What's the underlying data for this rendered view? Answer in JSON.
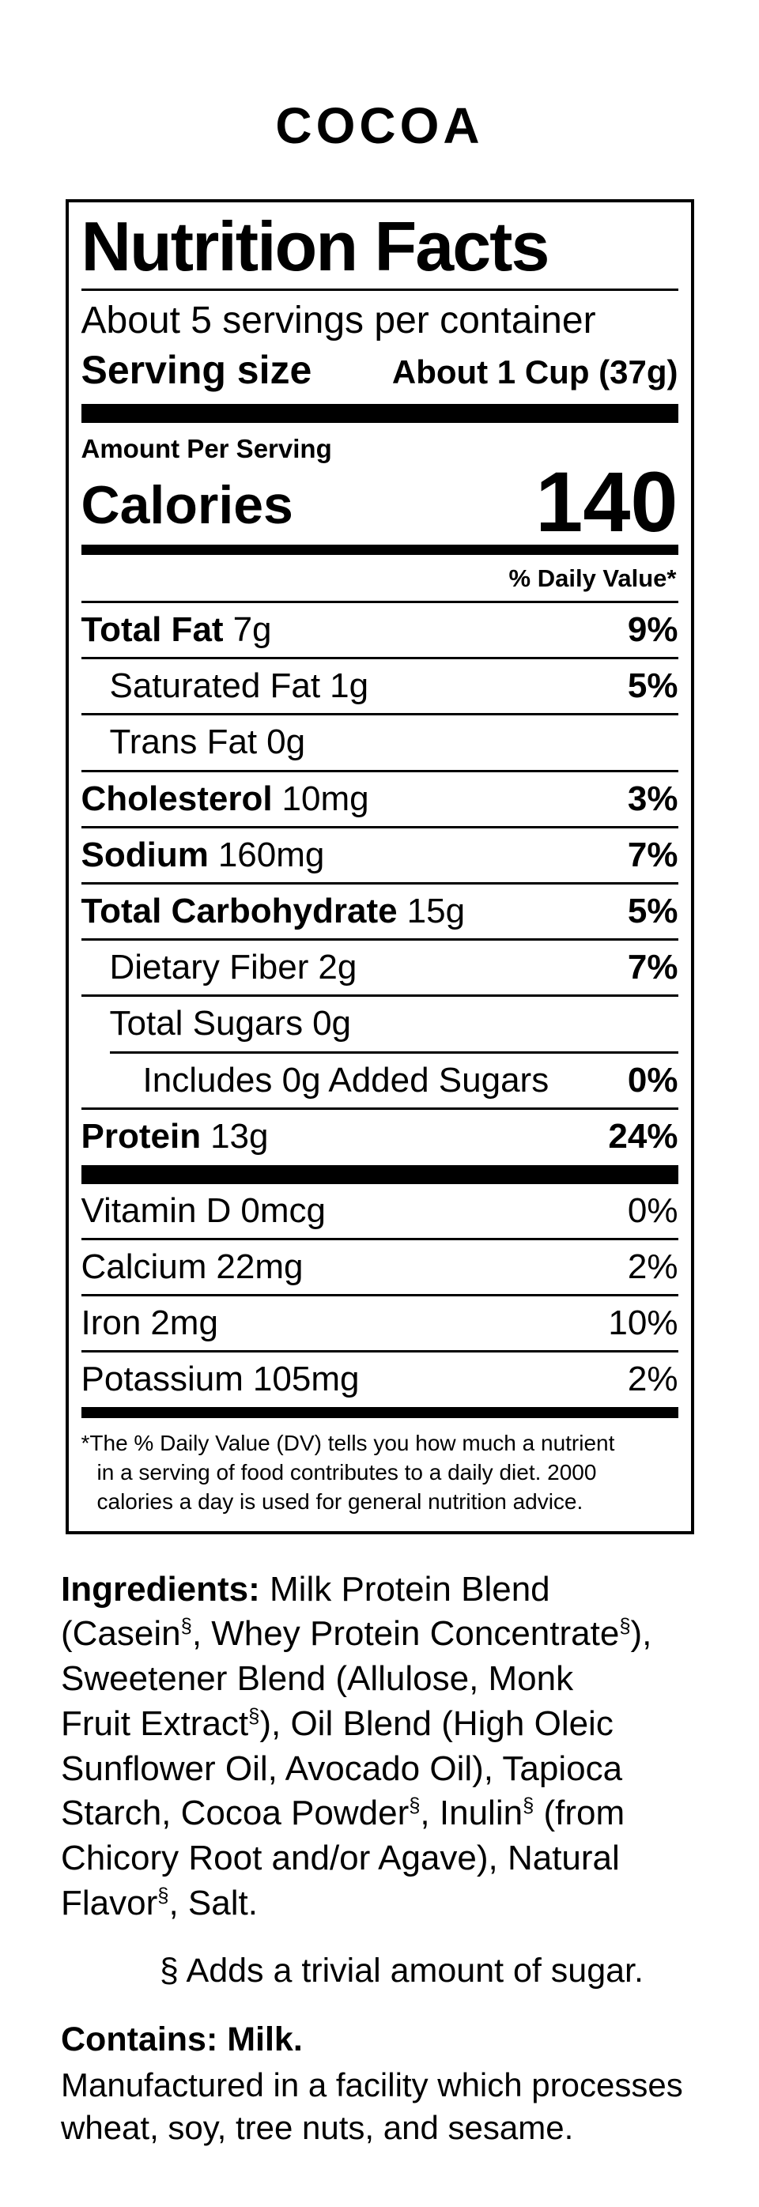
{
  "palette": {
    "text": "#000000",
    "background": "#ffffff"
  },
  "product_title": "COCOA",
  "nutrition_facts": {
    "title": "Nutrition Facts",
    "servings_per_container": "About 5 servings per container",
    "serving_size_label": "Serving size",
    "serving_size_value": "About 1 Cup (37g)",
    "amount_per_serving": "Amount Per Serving",
    "calories_label": "Calories",
    "calories_value": "140",
    "daily_value_header": "% Daily Value*",
    "rows": [
      {
        "name": "Total Fat",
        "amount": "7g",
        "dv": "9%"
      },
      {
        "name": "Saturated Fat",
        "amount": "1g",
        "dv": "5%"
      },
      {
        "name": "Trans Fat",
        "amount": "0g",
        "dv": ""
      },
      {
        "name": "Cholesterol",
        "amount": "10mg",
        "dv": "3%"
      },
      {
        "name": "Sodium",
        "amount": "160mg",
        "dv": "7%"
      },
      {
        "name": "Total Carbohydrate",
        "amount": "15g",
        "dv": "5%"
      },
      {
        "name": "Dietary Fiber",
        "amount": "2g",
        "dv": "7%"
      },
      {
        "name": "Total Sugars",
        "amount": "0g",
        "dv": ""
      },
      {
        "name": "Includes 0g Added Sugars",
        "amount": "",
        "dv": "0%"
      },
      {
        "name": "Protein",
        "amount": "13g",
        "dv": "24%"
      }
    ],
    "micronutrients": [
      {
        "name": "Vitamin D",
        "amount": "0mcg",
        "dv": "0%"
      },
      {
        "name": "Calcium",
        "amount": "22mg",
        "dv": "2%"
      },
      {
        "name": "Iron",
        "amount": "2mg",
        "dv": "10%"
      },
      {
        "name": "Potassium",
        "amount": "105mg",
        "dv": "2%"
      }
    ],
    "footnote_lines": [
      "*The % Daily Value (DV) tells you how much a nutrient",
      "in a serving of food contributes to a daily diet. 2000",
      "calories a day is used for general nutrition advice."
    ]
  },
  "ingredients": {
    "label": "Ingredients:",
    "full_text": "Ingredients: Milk Protein Blend (Casein§, Whey Protein Concentrate§), Sweetener Blend (Allulose, Monk Fruit Extract§), Oil Blend (High Oleic Sunflower Oil, Avocado Oil), Tapioca Starch, Cocoa Powder§, Inulin§ (from Chicory Root and/or Agave), Natural Flavor§, Salt.",
    "lines": [
      [
        {
          "t": "Ingredients: ",
          "b": 1
        },
        {
          "t": "Milk Protein Blend"
        }
      ],
      [
        {
          "t": "(Casein"
        },
        {
          "t": "§",
          "s": 1
        },
        {
          "t": ", Whey Protein Concentrate"
        },
        {
          "t": "§",
          "s": 1
        },
        {
          "t": "),"
        }
      ],
      [
        {
          "t": "Sweetener Blend (Allulose, Monk"
        }
      ],
      [
        {
          "t": "Fruit Extract"
        },
        {
          "t": "§",
          "s": 1
        },
        {
          "t": "), Oil Blend (High Oleic"
        }
      ],
      [
        {
          "t": "Sunflower Oil, Avocado Oil), Tapioca"
        }
      ],
      [
        {
          "t": "Starch, Cocoa Powder"
        },
        {
          "t": "§",
          "s": 1
        },
        {
          "t": ", Inulin"
        },
        {
          "t": "§",
          "s": 1
        },
        {
          "t": " (from"
        }
      ],
      [
        {
          "t": "Chicory Root and/or Agave), Natural"
        }
      ],
      [
        {
          "t": "Flavor"
        },
        {
          "t": "§",
          "s": 1
        },
        {
          "t": ", Salt."
        }
      ]
    ]
  },
  "sugar_note": "§ Adds a trivial amount of sugar.",
  "contains_statement": "Contains: Milk.",
  "facility_lines": [
    "Manufactured in a facility which processes",
    "wheat, soy, tree nuts, and sesame."
  ]
}
